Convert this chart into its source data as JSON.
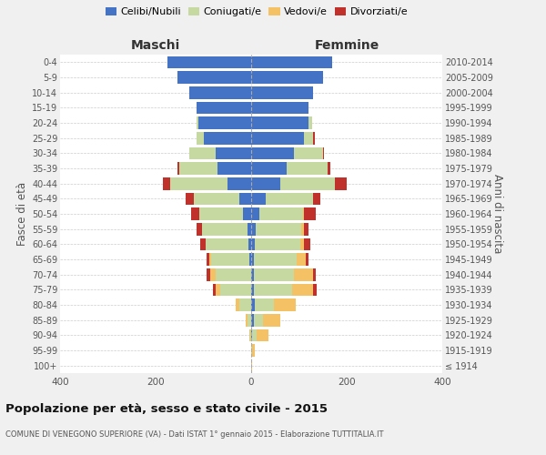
{
  "age_groups": [
    "100+",
    "95-99",
    "90-94",
    "85-89",
    "80-84",
    "75-79",
    "70-74",
    "65-69",
    "60-64",
    "55-59",
    "50-54",
    "45-49",
    "40-44",
    "35-39",
    "30-34",
    "25-29",
    "20-24",
    "15-19",
    "10-14",
    "5-9",
    "0-4"
  ],
  "birth_years": [
    "≤ 1914",
    "1915-1919",
    "1920-1924",
    "1925-1929",
    "1930-1934",
    "1935-1939",
    "1940-1944",
    "1945-1949",
    "1950-1954",
    "1955-1959",
    "1960-1964",
    "1965-1969",
    "1970-1974",
    "1975-1979",
    "1980-1984",
    "1985-1989",
    "1990-1994",
    "1995-1999",
    "2000-2004",
    "2005-2009",
    "2010-2014"
  ],
  "colors": {
    "celibi": "#4472c4",
    "coniugati": "#c5d9a0",
    "vedovi": "#f5c165",
    "divorziati": "#c0312b"
  },
  "males": {
    "celibi": [
      0,
      0,
      0,
      0,
      0,
      0,
      0,
      3,
      5,
      7,
      18,
      25,
      50,
      70,
      75,
      100,
      110,
      115,
      130,
      155,
      175
    ],
    "coniugati": [
      0,
      0,
      2,
      8,
      25,
      65,
      75,
      80,
      90,
      95,
      90,
      95,
      120,
      80,
      55,
      15,
      5,
      0,
      0,
      0,
      0
    ],
    "vedovi": [
      0,
      0,
      2,
      3,
      8,
      10,
      10,
      5,
      0,
      0,
      0,
      0,
      0,
      0,
      0,
      0,
      0,
      0,
      0,
      0,
      0
    ],
    "divorziati": [
      0,
      0,
      0,
      0,
      0,
      5,
      8,
      5,
      12,
      12,
      18,
      18,
      15,
      5,
      0,
      0,
      0,
      0,
      0,
      0,
      0
    ]
  },
  "females": {
    "celibi": [
      0,
      0,
      2,
      5,
      8,
      5,
      5,
      5,
      8,
      10,
      18,
      30,
      60,
      75,
      90,
      110,
      120,
      120,
      130,
      150,
      170
    ],
    "coniugati": [
      0,
      2,
      10,
      20,
      40,
      80,
      85,
      90,
      95,
      95,
      90,
      100,
      115,
      85,
      60,
      20,
      8,
      0,
      0,
      0,
      0
    ],
    "vedovi": [
      2,
      5,
      25,
      35,
      45,
      45,
      40,
      20,
      8,
      5,
      3,
      0,
      0,
      0,
      0,
      0,
      0,
      0,
      0,
      0,
      0
    ],
    "divorziati": [
      0,
      0,
      0,
      0,
      0,
      8,
      5,
      5,
      12,
      10,
      25,
      15,
      25,
      5,
      3,
      3,
      0,
      0,
      0,
      0,
      0
    ]
  },
  "title": "Popolazione per età, sesso e stato civile - 2015",
  "subtitle": "COMUNE DI VENEGONO SUPERIORE (VA) - Dati ISTAT 1° gennaio 2015 - Elaborazione TUTTITALIA.IT",
  "ylabel_left": "Fasce di età",
  "ylabel_right": "Anni di nascita",
  "xlabel_left": "Maschi",
  "xlabel_right": "Femmine",
  "xlim": 400,
  "legend_labels": [
    "Celibi/Nubili",
    "Coniugati/e",
    "Vedovi/e",
    "Divorziati/e"
  ],
  "bg_color": "#f0f0f0",
  "plot_bg": "#ffffff"
}
